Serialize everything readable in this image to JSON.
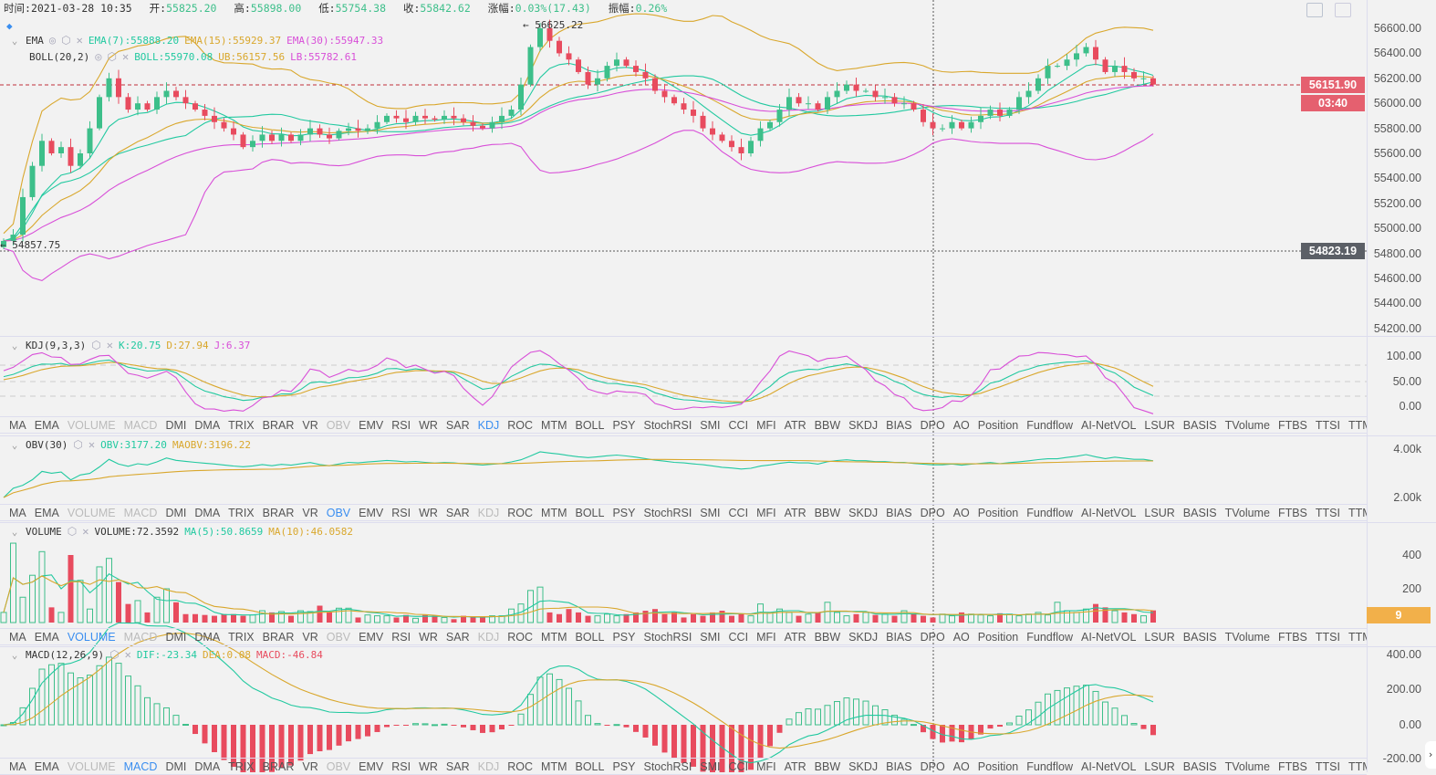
{
  "header": {
    "time_label": "时间:",
    "time": "2021-03-28 10:35",
    "open_label": "开:",
    "open": "55825.20",
    "high_label": "高:",
    "high": "55898.00",
    "low_label": "低:",
    "low": "55754.38",
    "close_label": "收:",
    "close": "55842.62",
    "change_label": "涨幅:",
    "change": "0.03%(17.43)",
    "amp_label": "振幅:",
    "amp": "0.26%"
  },
  "main": {
    "ema": {
      "name": "EMA",
      "ema7": "EMA(7):55888.20",
      "ema15": "EMA(15):55929.37",
      "ema30": "EMA(30):55947.33"
    },
    "boll": {
      "name": "BOLL(20,2)",
      "boll": "BOLL:55970.08",
      "ub": "UB:56157.56",
      "lb": "LB:55782.61"
    },
    "max_label": "← 56625.22",
    "min_label": "← 54857.75",
    "last_price": "56151.90",
    "countdown": "03:40",
    "cross_price": "54823.19",
    "axis": [
      "56600.00",
      "56400.00",
      "56200.00",
      "56000.00",
      "55800.00",
      "55600.00",
      "55400.00",
      "55200.00",
      "55000.00",
      "54800.00",
      "54600.00",
      "54400.00",
      "54200.00"
    ]
  },
  "kdj": {
    "name": "KDJ(9,3,3)",
    "k": "K:20.75",
    "d": "D:27.94",
    "j": "J:6.37",
    "axis": [
      "100.00",
      "50.00",
      "0.00"
    ]
  },
  "obv": {
    "name": "OBV(30)",
    "obv": "OBV:3177.20",
    "maobv": "MAOBV:3196.22",
    "axis": [
      "4.00k",
      "2.00k"
    ]
  },
  "volume": {
    "name": "VOLUME",
    "vol": "VOLUME:72.3592",
    "ma5": "MA(5):50.8659",
    "ma10": "MA(10):46.0582",
    "axis": [
      "400",
      "200"
    ],
    "current": "9"
  },
  "macd": {
    "name": "MACD(12,26,9)",
    "dif": "DIF:-23.34",
    "dea": "DEA:0.08",
    "macd": "MACD:-46.84",
    "axis": [
      "400.00",
      "200.00",
      "0.00",
      "-200.00"
    ]
  },
  "indicator_tabs": [
    "MA",
    "EMA",
    "VOLUME",
    "MACD",
    "DMI",
    "DMA",
    "TRIX",
    "BRAR",
    "VR",
    "OBV",
    "EMV",
    "RSI",
    "WR",
    "SAR",
    "KDJ",
    "ROC",
    "MTM",
    "BOLL",
    "PSY",
    "StochRSI",
    "SMI",
    "CCI",
    "MFI",
    "ATR",
    "BBW",
    "SKDJ",
    "BIAS",
    "DPO",
    "AO",
    "Position",
    "Fundflow",
    "AI-NetVOL",
    "LSUR",
    "BASIS",
    "TVolume",
    "FTBS",
    "TTSI",
    "TTMU"
  ],
  "tab_states": {
    "kdj": {
      "active": "KDJ",
      "disabled": [
        "VOLUME",
        "MACD",
        "OBV"
      ]
    },
    "obv": {
      "active": "OBV",
      "disabled": [
        "VOLUME",
        "MACD",
        "KDJ"
      ]
    },
    "volume": {
      "active": "VOLUME",
      "disabled": [
        "MACD",
        "OBV",
        "KDJ"
      ]
    },
    "macd": {
      "active": "MACD",
      "disabled": [
        "VOLUME",
        "OBV",
        "KDJ"
      ]
    }
  },
  "colors": {
    "up": "#3dbf8a",
    "down": "#e84b5e",
    "ema7": "#22c9a0",
    "ema15": "#d9a72c",
    "ema30": "#d84fd8",
    "active_tab": "#3a8ef0",
    "volume_label": "#f2b04a"
  },
  "chart_data": {
    "type": "candlestick",
    "closes": [
      54900,
      54950,
      55250,
      55500,
      55700,
      55600,
      55650,
      55500,
      55600,
      55800,
      56050,
      56200,
      56050,
      55950,
      56000,
      55950,
      56050,
      56100,
      56050,
      56000,
      55950,
      55900,
      55850,
      55800,
      55750,
      55650,
      55700,
      55750,
      55700,
      55750,
      55700,
      55750,
      55800,
      55750,
      55720,
      55780,
      55800,
      55780,
      55800,
      55850,
      55900,
      55880,
      55850,
      55900,
      55880,
      55870,
      55900,
      55880,
      55850,
      55820,
      55800,
      55850,
      55900,
      55950,
      56150,
      56450,
      56600,
      56500,
      56400,
      56350,
      56250,
      56150,
      56200,
      56300,
      56350,
      56300,
      56250,
      56200,
      56100,
      56050,
      56000,
      55950,
      55900,
      55800,
      55750,
      55700,
      55650,
      55600,
      55700,
      55800,
      55850,
      55950,
      56050,
      56000,
      56000,
      55950,
      56050,
      56100,
      56150,
      56100,
      56100,
      56050,
      56050,
      56000,
      56000,
      55950,
      55850,
      55800,
      55800,
      55850,
      55800,
      55850,
      55900,
      55950,
      55900,
      55950,
      56050,
      56100,
      56200,
      56300,
      56300,
      56350,
      56400,
      56450,
      56350,
      56250,
      56300,
      56250,
      56200,
      56200,
      56150
    ],
    "volumes": [
      60,
      470,
      150,
      280,
      420,
      90,
      60,
      400,
      250,
      80,
      330,
      380,
      240,
      110,
      130,
      60,
      150,
      200,
      120,
      50,
      50,
      45,
      40,
      50,
      50,
      40,
      45,
      70,
      60,
      65,
      40,
      70,
      65,
      100,
      60,
      85,
      85,
      30,
      45,
      40,
      40,
      30,
      45,
      25,
      45,
      40,
      30,
      20,
      40,
      35,
      35,
      40,
      40,
      80,
      110,
      190,
      210,
      60,
      50,
      80,
      60,
      40,
      40,
      50,
      40,
      50,
      60,
      70,
      80,
      50,
      60,
      30,
      50,
      40,
      60,
      70,
      40,
      50,
      40,
      110,
      60,
      80,
      60,
      40,
      50,
      60,
      120,
      60,
      40,
      50,
      60,
      45,
      50,
      40,
      70,
      50,
      40,
      30,
      50,
      40,
      60,
      50,
      45,
      40,
      55,
      50,
      40,
      50,
      60,
      45,
      120,
      70,
      60,
      80,
      110,
      90,
      70,
      60,
      50,
      40,
      72
    ]
  }
}
